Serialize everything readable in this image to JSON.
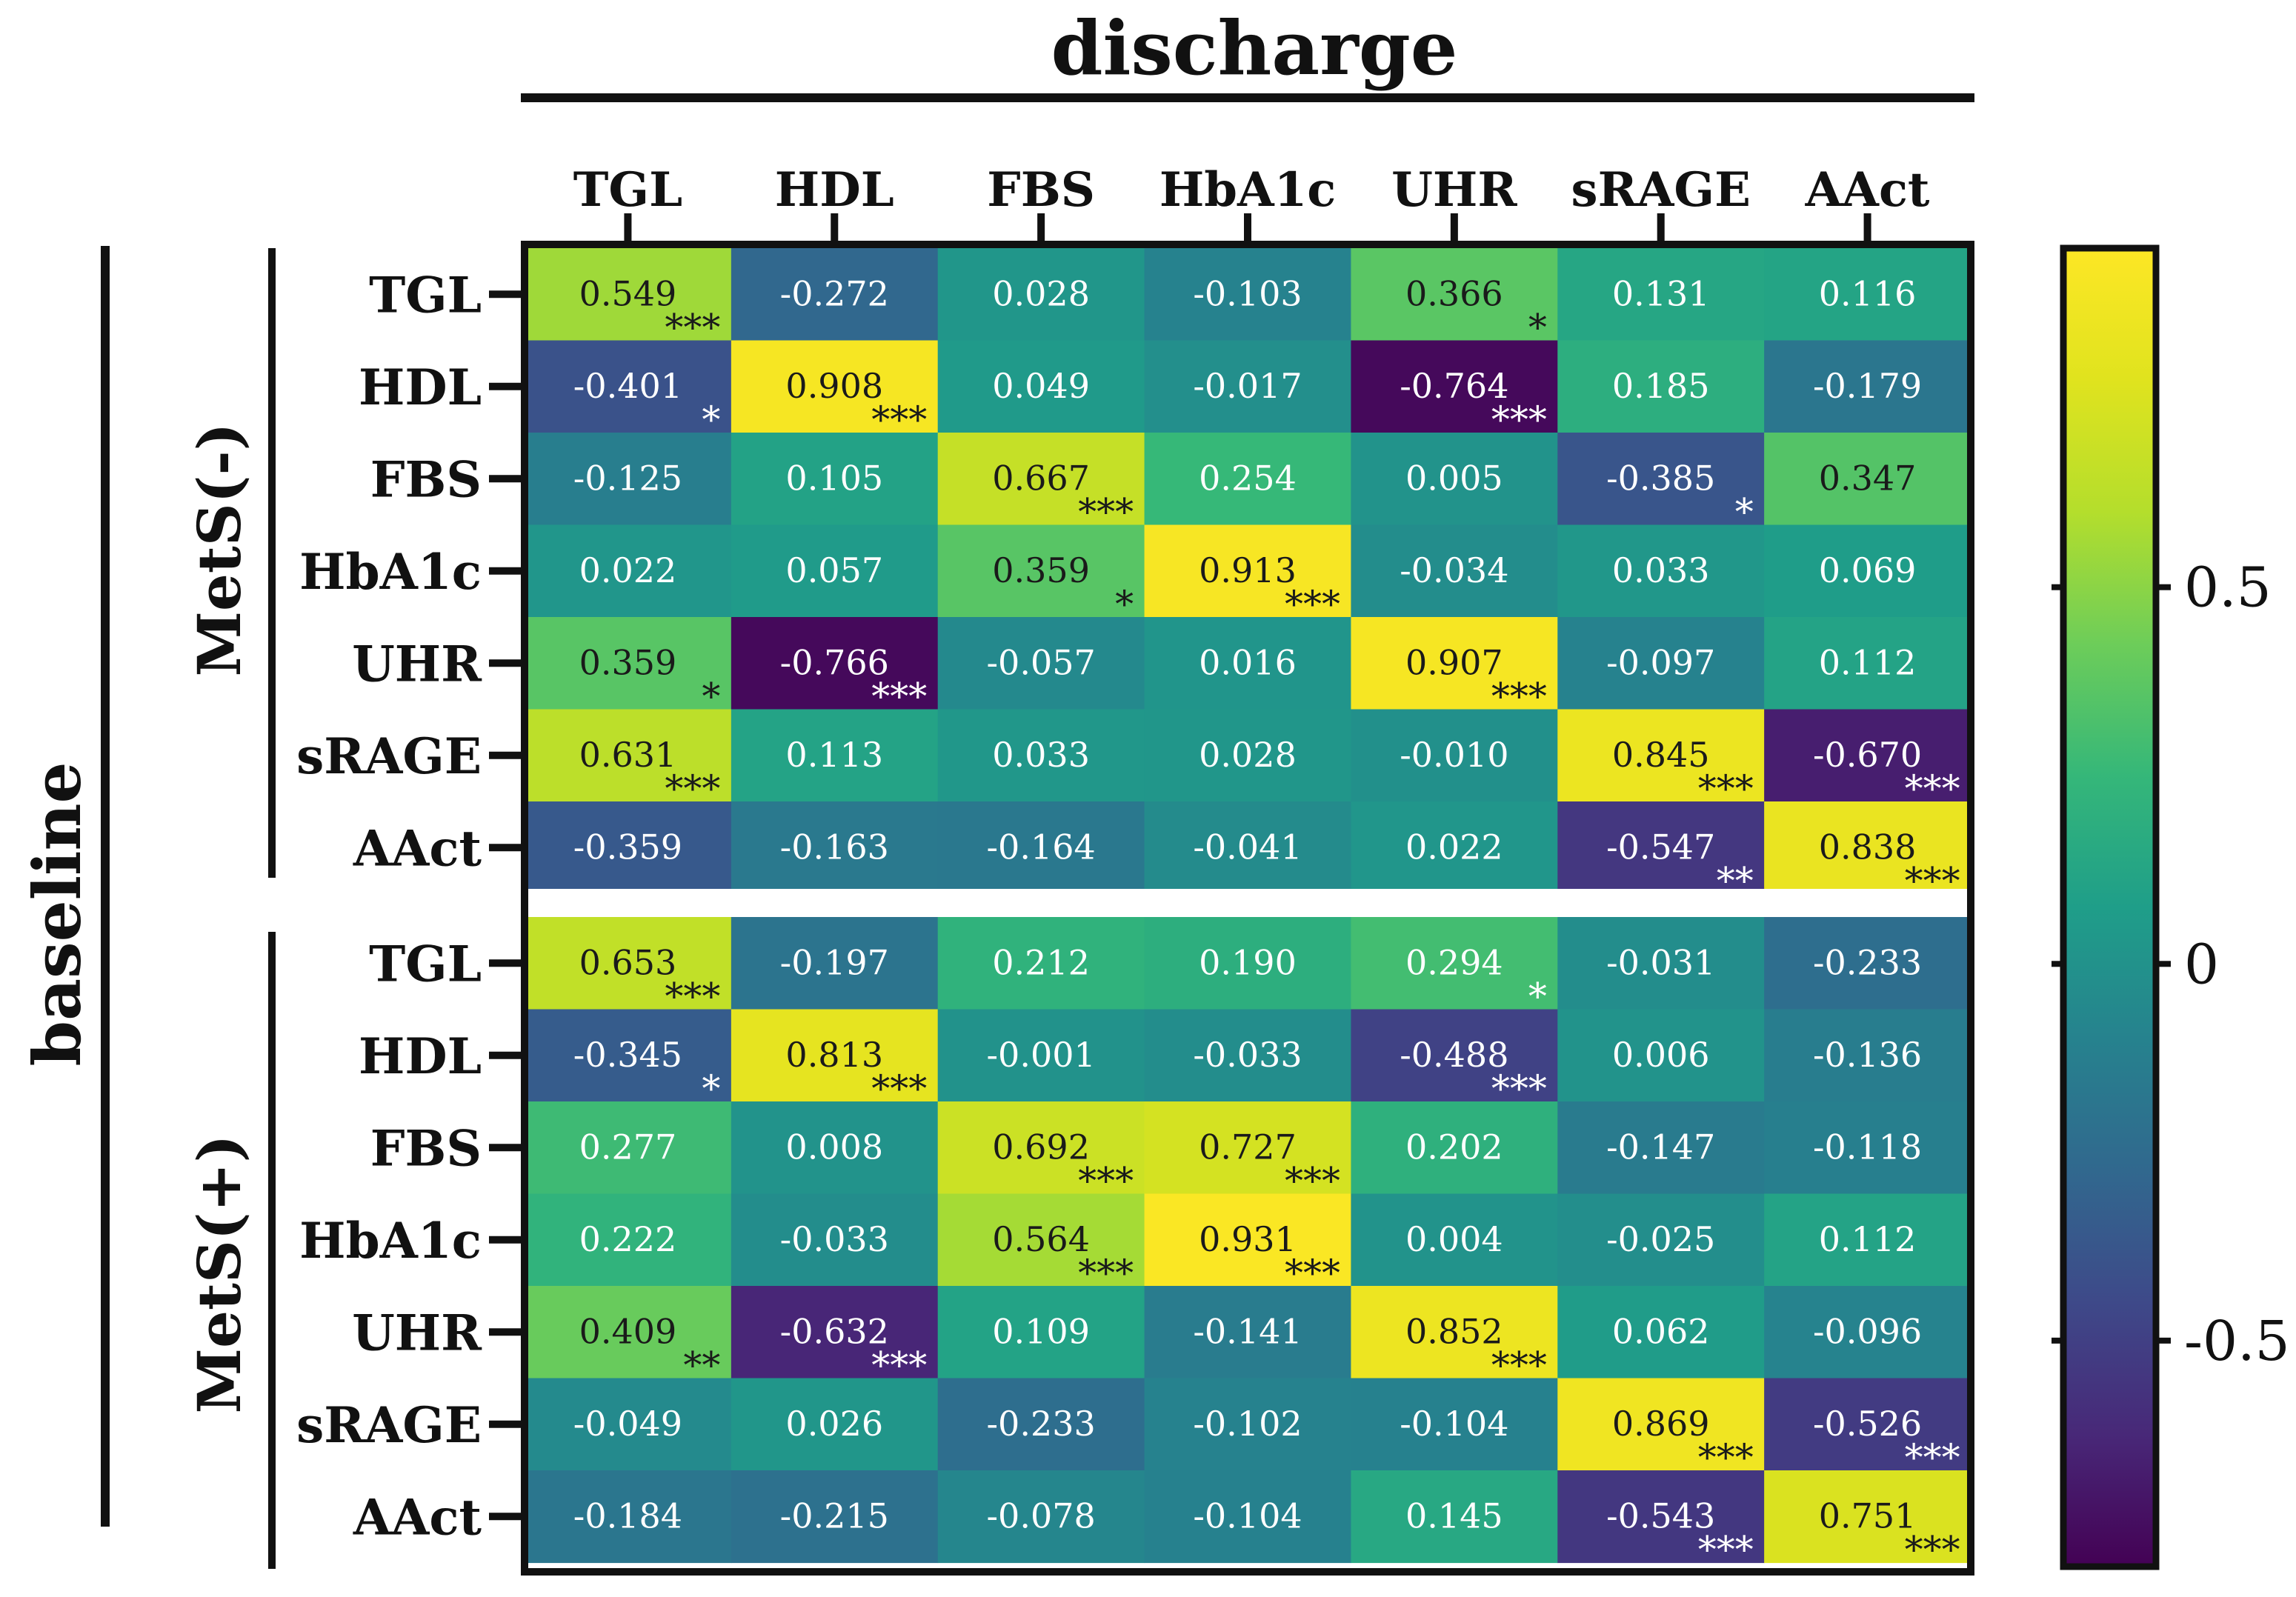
{
  "chart_data": {
    "type": "heatmap",
    "title": "discharge",
    "row_axis_title": "baseline",
    "columns": [
      "TGL",
      "HDL",
      "FBS",
      "HbA1c",
      "UHR",
      "sRAGE",
      "AAct"
    ],
    "colorbar": {
      "range": [
        -0.8,
        0.95
      ],
      "ticks": [
        0.5,
        0,
        -0.5
      ],
      "tick_labels": [
        "0.5",
        "0",
        "-0.5"
      ],
      "colormap": "viridis"
    },
    "groups": [
      {
        "name": "MetS(-)",
        "rows": [
          {
            "label": "TGL",
            "values": [
              0.549,
              -0.272,
              0.028,
              -0.103,
              0.366,
              0.131,
              0.116
            ],
            "labels": [
              "0.549",
              "-0.272",
              "0.028",
              "-0.103",
              "0.366",
              "0.131",
              "0.116"
            ],
            "sig": [
              "***",
              "",
              "",
              "",
              "*",
              "",
              ""
            ]
          },
          {
            "label": "HDL",
            "values": [
              -0.401,
              0.908,
              0.049,
              -0.017,
              -0.764,
              0.185,
              -0.179
            ],
            "labels": [
              "-0.401",
              "0.908",
              "0.049",
              "-0.017",
              "-0.764",
              "0.185",
              "-0.179"
            ],
            "sig": [
              "*",
              "***",
              "",
              "",
              "***",
              "",
              ""
            ]
          },
          {
            "label": "FBS",
            "values": [
              -0.125,
              0.105,
              0.667,
              0.254,
              0.005,
              -0.385,
              0.347
            ],
            "labels": [
              "-0.125",
              "0.105",
              "0.667",
              "0.254",
              "0.005",
              "-0.385",
              "0.347"
            ],
            "sig": [
              "",
              "",
              "***",
              "",
              "",
              "*",
              ""
            ]
          },
          {
            "label": "HbA1c",
            "values": [
              0.022,
              0.057,
              0.359,
              0.913,
              -0.034,
              0.033,
              0.069
            ],
            "labels": [
              "0.022",
              "0.057",
              "0.359",
              "0.913",
              "-0.034",
              "0.033",
              "0.069"
            ],
            "sig": [
              "",
              "",
              "*",
              "***",
              "",
              "",
              ""
            ]
          },
          {
            "label": "UHR",
            "values": [
              0.359,
              -0.766,
              -0.057,
              0.016,
              0.907,
              -0.097,
              0.112
            ],
            "labels": [
              "0.359",
              "-0.766",
              "-0.057",
              "0.016",
              "0.907",
              "-0.097",
              "0.112"
            ],
            "sig": [
              "*",
              "***",
              "",
              "",
              "***",
              "",
              ""
            ]
          },
          {
            "label": "sRAGE",
            "values": [
              0.631,
              0.113,
              0.033,
              0.028,
              -0.01,
              0.845,
              -0.67
            ],
            "labels": [
              "0.631",
              "0.113",
              "0.033",
              "0.028",
              "-0.010",
              "0.845",
              "-0.670"
            ],
            "sig": [
              "***",
              "",
              "",
              "",
              "",
              "***",
              "***"
            ]
          },
          {
            "label": "AAct",
            "values": [
              -0.359,
              -0.163,
              -0.164,
              -0.041,
              0.022,
              -0.547,
              0.838
            ],
            "labels": [
              "-0.359",
              "-0.163",
              "-0.164",
              "-0.041",
              "0.022",
              "-0.547",
              "0.838"
            ],
            "sig": [
              "",
              "",
              "",
              "",
              "",
              "**",
              "***"
            ]
          }
        ]
      },
      {
        "name": "MetS(+)",
        "rows": [
          {
            "label": "TGL",
            "values": [
              0.653,
              -0.197,
              0.212,
              0.19,
              0.294,
              -0.031,
              -0.233
            ],
            "labels": [
              "0.653",
              "-0.197",
              "0.212",
              "0.190",
              "0.294",
              "-0.031",
              "-0.233"
            ],
            "sig": [
              "***",
              "",
              "",
              "",
              "*",
              "",
              ""
            ]
          },
          {
            "label": "HDL",
            "values": [
              -0.345,
              0.813,
              -0.001,
              -0.033,
              -0.488,
              0.006,
              -0.136
            ],
            "labels": [
              "-0.345",
              "0.813",
              "-0.001",
              "-0.033",
              "-0.488",
              "0.006",
              "-0.136"
            ],
            "sig": [
              "*",
              "***",
              "",
              "",
              "***",
              "",
              ""
            ]
          },
          {
            "label": "FBS",
            "values": [
              0.277,
              0.008,
              0.692,
              0.727,
              0.202,
              -0.147,
              -0.118
            ],
            "labels": [
              "0.277",
              "0.008",
              "0.692",
              "0.727",
              "0.202",
              "-0.147",
              "-0.118"
            ],
            "sig": [
              "",
              "",
              "***",
              "***",
              "",
              "",
              ""
            ]
          },
          {
            "label": "HbA1c",
            "values": [
              0.222,
              -0.033,
              0.564,
              0.931,
              0.004,
              -0.025,
              0.112
            ],
            "labels": [
              "0.222",
              "-0.033",
              "0.564",
              "0.931",
              "0.004",
              "-0.025",
              "0.112"
            ],
            "sig": [
              "",
              "",
              "***",
              "***",
              "",
              "",
              ""
            ]
          },
          {
            "label": "UHR",
            "values": [
              0.409,
              -0.632,
              0.109,
              -0.141,
              0.852,
              0.062,
              -0.096
            ],
            "labels": [
              "0.409",
              "-0.632",
              "0.109",
              "-0.141",
              "0.852",
              "0.062",
              "-0.096"
            ],
            "sig": [
              "**",
              "***",
              "",
              "",
              "***",
              "",
              ""
            ]
          },
          {
            "label": "sRAGE",
            "values": [
              -0.049,
              0.026,
              -0.233,
              -0.102,
              -0.104,
              0.869,
              -0.526
            ],
            "labels": [
              "-0.049",
              "0.026",
              "-0.233",
              "-0.102",
              "-0.104",
              "0.869",
              "-0.526"
            ],
            "sig": [
              "",
              "",
              "",
              "",
              "",
              "***",
              "***"
            ]
          },
          {
            "label": "AAct",
            "values": [
              -0.184,
              -0.215,
              -0.078,
              -0.104,
              0.145,
              -0.543,
              0.751
            ],
            "labels": [
              "-0.184",
              "-0.215",
              "-0.078",
              "-0.104",
              "0.145",
              "-0.543",
              "0.751"
            ],
            "sig": [
              "",
              "",
              "",
              "",
              "",
              "***",
              "***"
            ]
          }
        ]
      }
    ]
  }
}
